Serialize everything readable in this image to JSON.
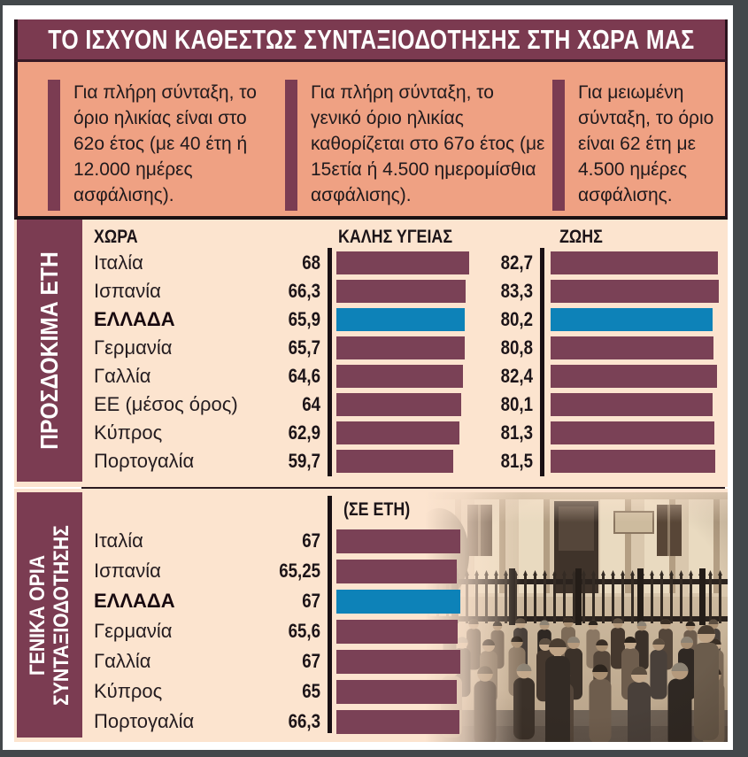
{
  "title": "ΤΟ ΙΣΧΥΟΝ ΚΑΘΕΣΤΩΣ ΣΥΝΤΑΞΙΟΔΟΤΗΣΗΣ ΣΤΗ ΧΩΡΑ ΜΑΣ",
  "info_boxes": [
    {
      "text": "Για πλήρη σύνταξη, το όριο ηλικίας είναι στο 62ο έτος (με 40 έτη ή 12.000 ημέρες ασφάλισης)."
    },
    {
      "text": "Για πλήρη σύνταξη, το γενικό όριο ηλικίας καθορίζεται στο 67ο έτος (με 15ετία ή 4.500 ημερομίσθια ασφάλισης)."
    },
    {
      "text": "Για μειωμένη σύνταξη, το όριο είναι 62 έτη με 4.500 ημέρες ασφάλισης."
    }
  ],
  "colors": {
    "maroon_frame": "#7b3a50",
    "bar": "#7a4156",
    "highlight_blue": "#0d82b8",
    "salmon": "#efa183",
    "cream": "#fce4cf",
    "ink": "#1c1418",
    "page_edge": "#43484b"
  },
  "photo": {
    "alt": "pensioners-crowd-photo"
  },
  "chart_data": [
    {
      "type": "bar",
      "orientation": "horizontal",
      "section_title": "ΠΡΟΣΔΟΚΙΜΑ ΕΤΗ",
      "columns": {
        "country": "ΧΩΡΑ",
        "series1": "ΚΑΛΗΣ ΥΓΕΙΑΣ",
        "series2": "ΖΩΗΣ"
      },
      "categories": [
        "Ιταλία",
        "Ισπανία",
        "ΕΛΛΑΔΑ",
        "Γερμανία",
        "Γαλλία",
        "ΕΕ (μέσος όρος)",
        "Κύπρος",
        "Πορτογαλία"
      ],
      "highlight_category": "ΕΛΛΑΔΑ",
      "highlight_index": 2,
      "grid": false,
      "series": [
        {
          "name": "ΚΑΛΗΣ ΥΓΕΙΑΣ",
          "values": [
            68,
            66.3,
            65.9,
            65.7,
            64.6,
            64,
            62.9,
            59.7
          ],
          "labels": [
            "68",
            "66,3",
            "65,9",
            "65,7",
            "64,6",
            "64",
            "62,9",
            "59,7"
          ],
          "axis_range": [
            0,
            68
          ]
        },
        {
          "name": "ΖΩΗΣ",
          "values": [
            82.7,
            83.3,
            80.2,
            80.8,
            82.4,
            80.1,
            81.3,
            81.5
          ],
          "labels": [
            "82,7",
            "83,3",
            "80,2",
            "80,8",
            "82,4",
            "80,1",
            "81,3",
            "81,5"
          ],
          "axis_range": [
            0,
            83.3
          ]
        }
      ]
    },
    {
      "type": "bar",
      "orientation": "horizontal",
      "section_title": "ΓΕΝΙΚΑ ΟΡΙΑ ΣΥΝΤΑΞΙΟΔΟΤΗΣΗΣ",
      "section_title_lines": [
        "ΓΕΝΙΚΑ ΟΡΙΑ",
        "ΣΥΝΤΑΞΙΟΔΟΤΗΣΗΣ"
      ],
      "unit_label": "(ΣΕ ΕΤΗ)",
      "categories": [
        "Ιταλία",
        "Ισπανία",
        "ΕΛΛΑΔΑ",
        "Γερμανία",
        "Γαλλία",
        "Κύπρος",
        "Πορτογαλία"
      ],
      "highlight_category": "ΕΛΛΑΔΑ",
      "highlight_index": 2,
      "grid": false,
      "series": [
        {
          "name": "ΓΕΝΙΚΑ ΟΡΙΑ ΣΥΝΤΑΞΙΟΔΟΤΗΣΗΣ",
          "values": [
            67,
            65.25,
            67,
            65.6,
            67,
            65,
            66.3
          ],
          "labels": [
            "67",
            "65,25",
            "67",
            "65,6",
            "67",
            "65",
            "66,3"
          ],
          "axis_range": [
            0,
            67
          ]
        }
      ]
    }
  ]
}
